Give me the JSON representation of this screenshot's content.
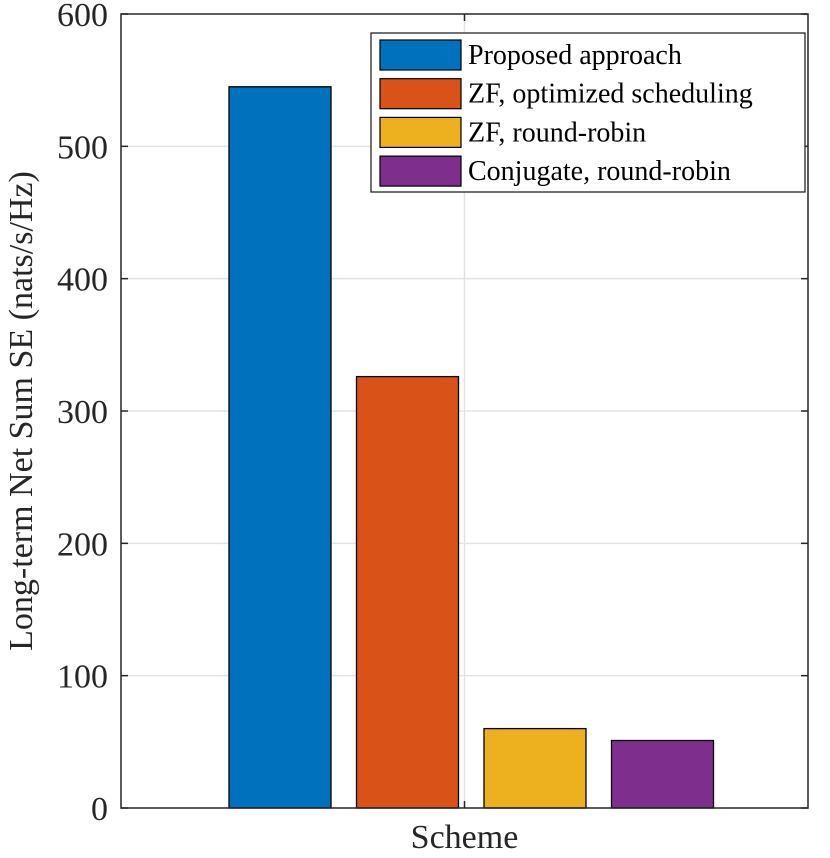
{
  "chart_data": {
    "type": "bar",
    "title": "",
    "xlabel": "Scheme",
    "ylabel": "Long-term Net Sum SE (nats/s/Hz)",
    "ylim": [
      0,
      600
    ],
    "yticks": [
      0,
      100,
      200,
      300,
      400,
      500,
      600
    ],
    "grid": true,
    "legend_position": "top-right",
    "series": [
      {
        "name": "Proposed approach",
        "value": 545,
        "color": "#0072BD"
      },
      {
        "name": "ZF, optimized scheduling",
        "value": 326,
        "color": "#D95319"
      },
      {
        "name": "ZF, round-robin",
        "value": 60,
        "color": "#EDB120"
      },
      {
        "name": "Conjugate, round-robin",
        "value": 51,
        "color": "#7E2F8E"
      }
    ]
  }
}
